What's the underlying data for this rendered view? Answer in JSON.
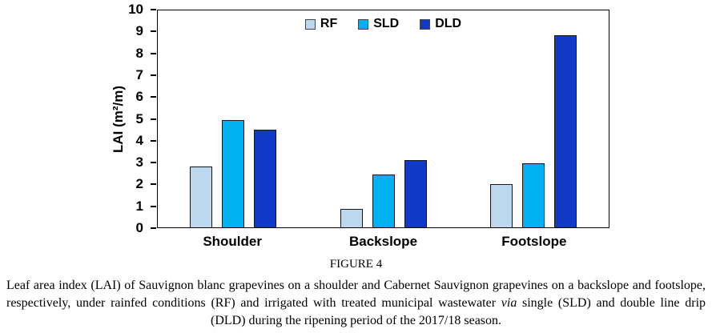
{
  "chart_data": {
    "type": "bar",
    "categories": [
      "Shoulder",
      "Backslope",
      "Footslope"
    ],
    "series": [
      {
        "name": "RF",
        "color": "#bdd7ee",
        "values": [
          2.8,
          0.85,
          2.0
        ]
      },
      {
        "name": "SLD",
        "color": "#00b0f0",
        "values": [
          4.95,
          2.45,
          2.95
        ]
      },
      {
        "name": "DLD",
        "color": "#1238c8",
        "values": [
          4.5,
          3.1,
          8.85
        ]
      }
    ],
    "ylabel": "LAI (m²/m)",
    "xlabel": "",
    "ylim": [
      0,
      10
    ],
    "ytick_step": 1,
    "grid": false,
    "legend_position": "top-center"
  },
  "caption": {
    "figure_label": "FIGURE 4",
    "text_before_italic": "Leaf area index (LAI) of Sauvignon blanc grapevines on a shoulder and Cabernet Sauvignon grapevines on a backslope and footslope, respectively, under rainfed conditions (RF) and irrigated with treated municipal wastewater ",
    "italic_word": "via",
    "text_after_italic": " single (SLD) and double line drip (DLD) during the ripening period of the 2017/18 season."
  }
}
